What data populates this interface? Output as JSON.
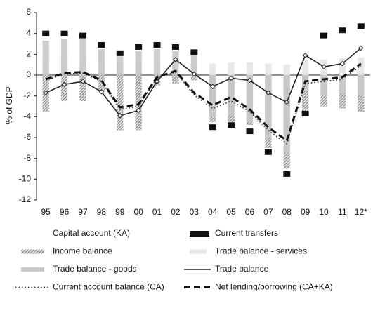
{
  "chart_data": {
    "type": "combo",
    "y_label": "% of GDP",
    "categories": [
      "95",
      "96",
      "97",
      "98",
      "99",
      "00",
      "01",
      "02",
      "03",
      "04",
      "05",
      "06",
      "07",
      "08",
      "09",
      "10",
      "11",
      "12*"
    ],
    "ylim": [
      -12,
      6
    ],
    "yticks": [
      -12,
      -10,
      -8,
      -6,
      -4,
      -2,
      0,
      2,
      4,
      6
    ],
    "series": [
      {
        "name": "Capital account (KA)",
        "kind": "bar",
        "color": "#ffffff",
        "values": [
          0.1,
          0.1,
          0.1,
          0.1,
          0.2,
          0.2,
          0.1,
          0.1,
          0.2,
          0.3,
          0.4,
          0.2,
          0.3,
          0.3,
          0.2,
          0.2,
          0.2,
          0.2
        ]
      },
      {
        "name": "Current transfers",
        "kind": "marker",
        "color": "#111111",
        "values": [
          4,
          4,
          3.8,
          2.9,
          2.1,
          2.7,
          2.9,
          2.7,
          2.2,
          -5,
          -4.8,
          -5.4,
          -7.4,
          -9.5,
          -3.7,
          3.8,
          4.3,
          4.7
        ]
      },
      {
        "name": "Income balance",
        "kind": "bar",
        "color": "#9a9a9a",
        "values": [
          -3.5,
          -2.5,
          -2.5,
          -1.5,
          -5.3,
          -5.3,
          -1,
          -0.8,
          -0.5,
          -4.5,
          -4.5,
          -4.8,
          -7,
          -9,
          -3.5,
          -3,
          -3.2,
          -3.5
        ]
      },
      {
        "name": "Trade balance - services",
        "kind": "bar",
        "color": "#e6e6e6",
        "values": [
          1.5,
          1.6,
          1.5,
          1.3,
          1.2,
          1.4,
          1.5,
          1.3,
          1.2,
          1.1,
          1.2,
          1.2,
          1.1,
          1.0,
          1.4,
          1.5,
          1.6,
          1.7
        ]
      },
      {
        "name": "Trade balance - goods",
        "kind": "bar",
        "color": "#c8c8c8",
        "values": [
          3.3,
          3.5,
          3.5,
          2.5,
          1.8,
          2.3,
          2.5,
          2.3,
          2,
          -4,
          -3.8,
          -4.5,
          -6,
          -7.5,
          -1.5,
          -2,
          -1.8,
          -2
        ]
      },
      {
        "name": "Trade balance",
        "kind": "line",
        "dash": "solid",
        "marker": "diamond",
        "color": "#222222",
        "values": [
          -1.7,
          -0.9,
          -0.6,
          -1.6,
          -3.9,
          -3.4,
          -0.6,
          1.5,
          0.1,
          -1.1,
          -0.3,
          -0.5,
          -1.7,
          -2.6,
          1.9,
          0.8,
          1.1,
          2.6
        ]
      },
      {
        "name": "Current account balance (CA)",
        "kind": "line",
        "dash": "dotted",
        "color": "#222222",
        "values": [
          -0.5,
          0.1,
          0.2,
          -0.6,
          -3.3,
          -3,
          -0.3,
          0.3,
          -1.9,
          -3.2,
          -2.5,
          -3.5,
          -5.3,
          -6.6,
          -0.8,
          -0.6,
          -0.4,
          0.9
        ]
      },
      {
        "name": "Net lending/borrowing (CA+KA)",
        "kind": "line",
        "dash": "dashed",
        "color": "#111111",
        "values": [
          -0.4,
          0.2,
          0.3,
          -0.5,
          -3.1,
          -2.8,
          -0.2,
          0.4,
          -1.7,
          -2.9,
          -2.1,
          -3.3,
          -5,
          -6.3,
          -0.6,
          -0.4,
          -0.2,
          1.1
        ]
      }
    ],
    "legend_order": [
      0,
      1,
      2,
      3,
      4,
      5,
      6,
      7
    ]
  }
}
